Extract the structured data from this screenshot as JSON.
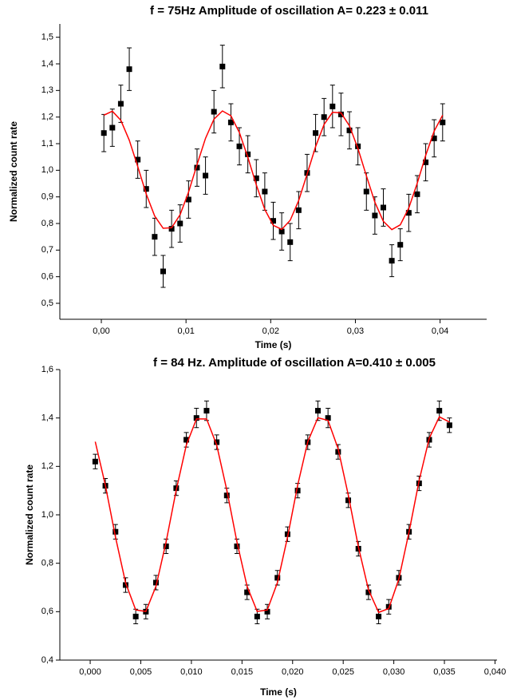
{
  "chart_data": [
    {
      "type": "scatter",
      "title": "f = 75Hz Amplitude of oscillation A= 0.223 ± 0.011",
      "xlabel": "Time (s)",
      "ylabel": "Normalized count rate",
      "x": [
        0.0003,
        0.0013,
        0.0023,
        0.0033,
        0.0043,
        0.0053,
        0.0063,
        0.0073,
        0.0083,
        0.0093,
        0.0103,
        0.0113,
        0.0123,
        0.0133,
        0.0143,
        0.0153,
        0.0163,
        0.0173,
        0.0183,
        0.0193,
        0.0203,
        0.0213,
        0.0223,
        0.0233,
        0.0243,
        0.0253,
        0.0263,
        0.0273,
        0.0283,
        0.0293,
        0.0303,
        0.0313,
        0.0323,
        0.0333,
        0.0343,
        0.0353,
        0.0363,
        0.0373,
        0.0383,
        0.0393,
        0.0403
      ],
      "series": [
        {
          "color": "#000000",
          "style": "points",
          "values": [
            1.14,
            1.16,
            1.25,
            1.38,
            1.04,
            0.93,
            0.75,
            0.62,
            0.78,
            0.8,
            0.89,
            1.01,
            0.98,
            1.22,
            1.39,
            1.18,
            1.09,
            1.06,
            0.97,
            0.92,
            0.81,
            0.77,
            0.73,
            0.85,
            0.99,
            1.14,
            1.2,
            1.24,
            1.21,
            1.15,
            1.09,
            0.92,
            0.83,
            0.86,
            0.66,
            0.72,
            0.84,
            0.91,
            1.03,
            1.12,
            1.18
          ],
          "errors": [
            0.07,
            0.07,
            0.07,
            0.08,
            0.07,
            0.07,
            0.07,
            0.06,
            0.07,
            0.07,
            0.07,
            0.07,
            0.07,
            0.08,
            0.08,
            0.07,
            0.07,
            0.07,
            0.07,
            0.07,
            0.07,
            0.07,
            0.07,
            0.07,
            0.07,
            0.07,
            0.07,
            0.08,
            0.08,
            0.07,
            0.07,
            0.07,
            0.07,
            0.07,
            0.06,
            0.06,
            0.07,
            0.07,
            0.07,
            0.07,
            0.07
          ]
        },
        {
          "color": "#ff0000",
          "style": "line",
          "values": [
            1.207,
            1.222,
            1.188,
            1.113,
            1.014,
            0.911,
            0.828,
            0.782,
            0.784,
            0.833,
            0.918,
            1.021,
            1.12,
            1.192,
            1.223,
            1.205,
            1.142,
            1.049,
            0.945,
            0.853,
            0.793,
            0.778,
            0.812,
            0.886,
            0.986,
            1.089,
            1.172,
            1.218,
            1.216,
            1.167,
            1.082,
            0.979,
            0.88,
            0.808,
            0.777,
            0.795,
            0.858,
            0.951,
            1.056,
            1.147,
            1.207
          ]
        }
      ],
      "xlim": [
        -0.0049,
        0.0455
      ],
      "xticks": [
        {
          "value": 0.0,
          "label": "0,00"
        },
        {
          "value": 0.01,
          "label": "0,01"
        },
        {
          "value": 0.02,
          "label": "0,02"
        },
        {
          "value": 0.03,
          "label": "0,03"
        },
        {
          "value": 0.04,
          "label": "0,04"
        }
      ],
      "ylim": [
        0.44,
        1.55
      ],
      "yticks": [
        {
          "value": 0.5,
          "label": "0,5"
        },
        {
          "value": 0.6,
          "label": "0,6"
        },
        {
          "value": 0.7,
          "label": "0,7"
        },
        {
          "value": 0.8,
          "label": "0,8"
        },
        {
          "value": 0.9,
          "label": "0,9"
        },
        {
          "value": 1.0,
          "label": "1,0"
        },
        {
          "value": 1.1,
          "label": "1,1"
        },
        {
          "value": 1.2,
          "label": "1,2"
        },
        {
          "value": 1.3,
          "label": "1,3"
        },
        {
          "value": 1.4,
          "label": "1,4"
        },
        {
          "value": 1.5,
          "label": "1,5"
        }
      ]
    },
    {
      "type": "scatter",
      "title": "f = 84 Hz. Amplitude of oscillation A=0.410 ± 0.005",
      "xlabel": "Time (s)",
      "ylabel": "Normalized count rate",
      "x": [
        0.0005,
        0.0015,
        0.0025,
        0.0035,
        0.0045,
        0.0055,
        0.0065,
        0.0075,
        0.0085,
        0.0095,
        0.0105,
        0.0115,
        0.0125,
        0.0135,
        0.0145,
        0.0155,
        0.0165,
        0.0175,
        0.0185,
        0.0195,
        0.0205,
        0.0215,
        0.0225,
        0.0235,
        0.0245,
        0.0255,
        0.0265,
        0.0275,
        0.0285,
        0.0295,
        0.0305,
        0.0315,
        0.0325,
        0.0335,
        0.0345,
        0.0355
      ],
      "series": [
        {
          "color": "#000000",
          "style": "points",
          "values": [
            1.22,
            1.12,
            0.93,
            0.71,
            0.58,
            0.6,
            0.72,
            0.87,
            1.11,
            1.31,
            1.4,
            1.43,
            1.3,
            1.08,
            0.87,
            0.68,
            0.58,
            0.6,
            0.74,
            0.92,
            1.1,
            1.3,
            1.43,
            1.4,
            1.26,
            1.06,
            0.86,
            0.68,
            0.58,
            0.62,
            0.74,
            0.93,
            1.13,
            1.31,
            1.43,
            1.37
          ],
          "errors": [
            0.03,
            0.03,
            0.03,
            0.03,
            0.03,
            0.03,
            0.03,
            0.03,
            0.03,
            0.03,
            0.04,
            0.04,
            0.03,
            0.03,
            0.03,
            0.03,
            0.03,
            0.03,
            0.03,
            0.03,
            0.03,
            0.03,
            0.04,
            0.04,
            0.03,
            0.03,
            0.03,
            0.03,
            0.03,
            0.03,
            0.03,
            0.03,
            0.03,
            0.03,
            0.04,
            0.03
          ]
        },
        {
          "color": "#ff0000",
          "style": "line",
          "values": [
            1.302,
            1.122,
            0.908,
            0.719,
            0.607,
            0.601,
            0.705,
            0.888,
            1.102,
            1.288,
            1.396,
            1.396,
            1.288,
            1.102,
            0.888,
            0.705,
            0.601,
            0.607,
            0.72,
            0.908,
            1.122,
            1.302,
            1.401,
            1.39,
            1.273,
            1.082,
            0.868,
            0.69,
            0.597,
            0.613,
            0.735,
            0.928,
            1.141,
            1.316,
            1.405,
            1.383
          ]
        }
      ],
      "xlim": [
        -0.003,
        0.0402
      ],
      "xticks": [
        {
          "value": 0.0,
          "label": "0,000"
        },
        {
          "value": 0.005,
          "label": "0,005"
        },
        {
          "value": 0.01,
          "label": "0,010"
        },
        {
          "value": 0.015,
          "label": "0,015"
        },
        {
          "value": 0.02,
          "label": "0,020"
        },
        {
          "value": 0.025,
          "label": "0,025"
        },
        {
          "value": 0.03,
          "label": "0,030"
        },
        {
          "value": 0.035,
          "label": "0,035"
        },
        {
          "value": 0.04,
          "label": "0,040"
        }
      ],
      "ylim": [
        0.4,
        1.6
      ],
      "yticks": [
        {
          "value": 0.4,
          "label": "0,4"
        },
        {
          "value": 0.6,
          "label": "0,6"
        },
        {
          "value": 0.8,
          "label": "0,8"
        },
        {
          "value": 1.0,
          "label": "1,0"
        },
        {
          "value": 1.2,
          "label": "1,2"
        },
        {
          "value": 1.4,
          "label": "1,4"
        },
        {
          "value": 1.6,
          "label": "1,6"
        }
      ]
    }
  ]
}
